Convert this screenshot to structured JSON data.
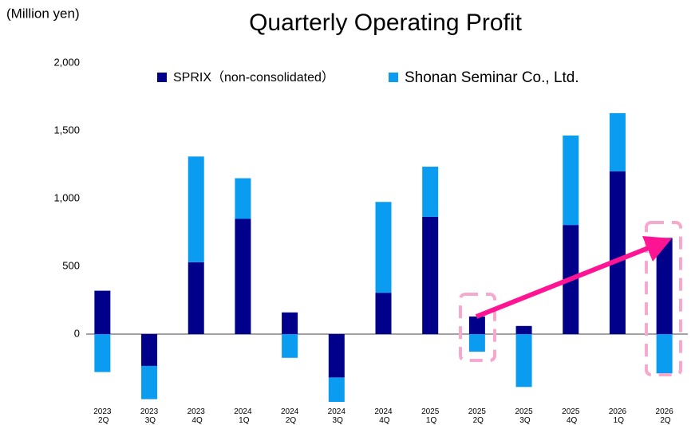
{
  "chart_data": {
    "type": "stacked_bar",
    "title": "Quarterly Operating Profit",
    "y_label": "(Million yen)",
    "categories": [
      "2023 2Q",
      "2023 3Q",
      "2023 4Q",
      "2024 1Q",
      "2024 2Q",
      "2024 3Q",
      "2024 4Q",
      "2025 1Q",
      "2025 2Q",
      "2025 3Q",
      "2025 4Q",
      "2026 1Q",
      "2026 2Q"
    ],
    "series": [
      {
        "name": "SPRIX（non-consolidated）",
        "color": "#00008b",
        "values": [
          320,
          -235,
          530,
          850,
          160,
          -320,
          305,
          865,
          130,
          60,
          805,
          1200,
          710
        ]
      },
      {
        "name": "Shonan Seminar Co., Ltd.",
        "color": "#0a9cf0",
        "values": [
          -280,
          -245,
          780,
          300,
          -175,
          -180,
          670,
          370,
          -130,
          -390,
          660,
          430,
          -290
        ]
      }
    ],
    "ylim": [
      -500,
      2000
    ],
    "yticks": [
      0,
      500,
      {
        "value": 1000,
        "label": "1,000"
      },
      {
        "value": 1500,
        "label": "1,500"
      },
      {
        "value": 2000,
        "label": "2,000"
      }
    ],
    "grid": false,
    "legend": "top"
  }
}
